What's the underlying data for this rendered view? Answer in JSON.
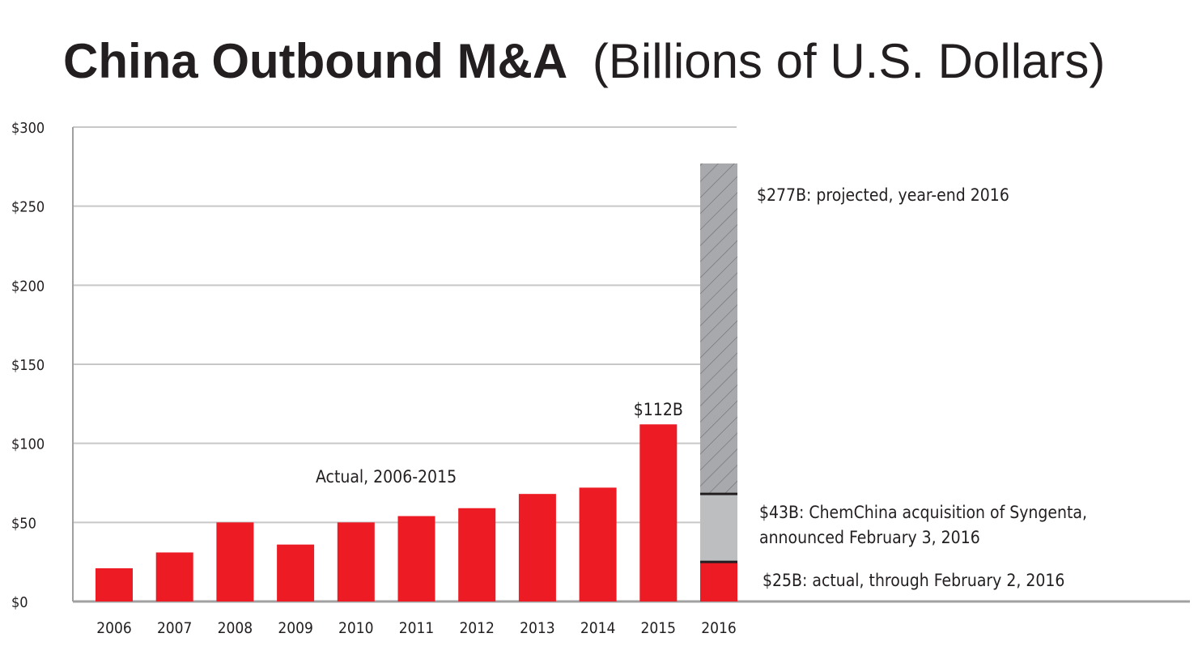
{
  "chart_data": {
    "type": "bar",
    "title": "China Outbound M&A",
    "subtitle": "(Billions of U.S. Dollars)",
    "xlabel": "",
    "ylabel": "",
    "ylim": [
      0,
      300
    ],
    "yticks": [
      0,
      50,
      100,
      150,
      200,
      250,
      300
    ],
    "ytick_labels": [
      "$0",
      "$50",
      "$100",
      "$150",
      "$200",
      "$250",
      "$300"
    ],
    "grid": true,
    "categories": [
      "2006",
      "2007",
      "2008",
      "2009",
      "2010",
      "2011",
      "2012",
      "2013",
      "2014",
      "2015",
      "2016"
    ],
    "values": [
      21,
      31,
      50,
      36,
      50,
      54,
      59,
      68,
      72,
      112,
      25
    ],
    "stack_2016": [
      {
        "label": "$25B: actual, through February 2, 2016",
        "value": 25,
        "color": "#ed1c24"
      },
      {
        "label": "$43B: ChemChina acquisition of Syngenta, announced February 3, 2016",
        "label_lines": [
          "$43B: ChemChina acquisition of Syngenta,",
          "announced February 3, 2016"
        ],
        "value": 43,
        "color": "#bcbec0"
      },
      {
        "label": "$277B: projected, year-end 2016",
        "value": 209,
        "total": 277,
        "color": "#a7a9ac",
        "pattern": "hatched"
      }
    ],
    "annotations": [
      {
        "text": "Actual, 2006-2015"
      },
      {
        "text": "$112B",
        "category": "2015"
      }
    ],
    "colors": {
      "actual": "#ed1c24",
      "grid": "#c8c8c8",
      "text": "#231f20"
    }
  }
}
